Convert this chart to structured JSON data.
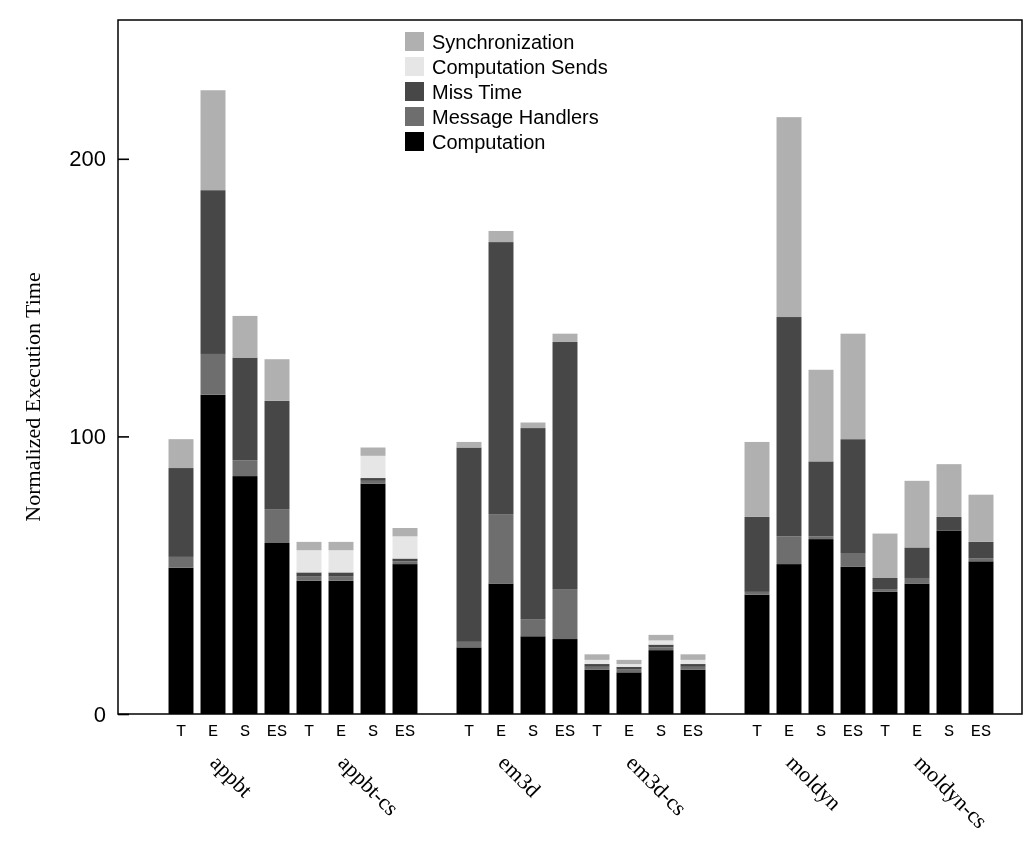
{
  "chart_data": {
    "type": "bar",
    "stacked": true,
    "ylabel": "Normalized Execution Time",
    "categories": [
      "T",
      "E",
      "S",
      "ES",
      "T",
      "E",
      "S",
      "ES",
      null,
      "T",
      "E",
      "S",
      "ES",
      "T",
      "E",
      "S",
      "ES",
      null,
      "T",
      "E",
      "S",
      "ES",
      "T",
      "E",
      "S",
      "ES"
    ],
    "annotations": [
      "appbt",
      "appbt-cs",
      "em3d",
      "em3d-cs",
      "moldyn",
      "moldyn-cs"
    ],
    "series": [
      {
        "name": "Computation",
        "color": "#000000",
        "values": [
          52.7,
          115,
          85.7,
          61.6,
          48,
          48,
          83,
          54,
          null,
          24,
          47,
          28,
          27,
          16,
          15,
          23,
          16,
          null,
          43,
          54,
          63,
          53,
          44,
          47,
          66,
          55
        ]
      },
      {
        "name": "Message Handlers",
        "color": "#6e6e6e",
        "values": [
          3.9,
          14.7,
          5.7,
          12.2,
          1.5,
          1.5,
          1,
          1,
          null,
          2,
          25,
          6,
          18,
          1,
          1,
          1,
          1,
          null,
          1,
          10,
          1,
          5,
          1,
          2,
          0,
          1
        ]
      },
      {
        "name": "Miss Time",
        "color": "#474747",
        "values": [
          32,
          59,
          37,
          39,
          1.5,
          1.5,
          1,
          1,
          null,
          70,
          98,
          69,
          89,
          1,
          1,
          1,
          1,
          null,
          27,
          79,
          27,
          41,
          4,
          11,
          5,
          6
        ]
      },
      {
        "name": "Computation Sends",
        "color": "#e6e6e6",
        "values": [
          0,
          0,
          0,
          0,
          8,
          8,
          8,
          8,
          null,
          0,
          0,
          0,
          0,
          1.5,
          1,
          1.5,
          1.5,
          null,
          0,
          0,
          0,
          0,
          0,
          0,
          0,
          0
        ]
      },
      {
        "name": "Synchronization",
        "color": "#b0b0b0",
        "values": [
          10.4,
          36,
          15,
          15,
          3,
          3,
          3,
          3,
          null,
          2,
          4,
          2,
          3,
          2,
          1.5,
          2,
          2,
          null,
          27,
          72,
          33,
          38,
          16,
          24,
          19,
          17
        ]
      }
    ],
    "ylim": [
      0,
      250
    ],
    "yticks": [
      0,
      100,
      200
    ],
    "legend": "top",
    "grid": false
  }
}
